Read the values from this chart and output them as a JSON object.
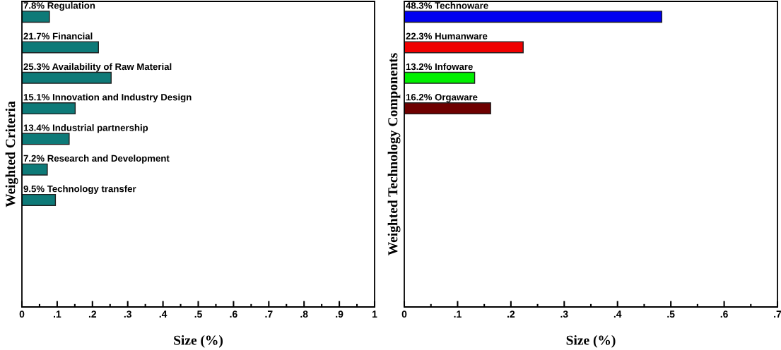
{
  "chart_data": [
    {
      "type": "bar",
      "orientation": "horizontal",
      "ylabel": "Weighted Criteria",
      "xlabel": "Size (%)",
      "categories": [
        "7.8% Regulation",
        "21.7% Financial",
        "25.3% Availability of Raw Material",
        "15.1% Innovation and Industry Design",
        "13.4% Industrial partnership",
        "7.2% Research and Development",
        "9.5% Technology transfer",
        null,
        null,
        null
      ],
      "values": [
        0.078,
        0.217,
        0.253,
        0.151,
        0.134,
        0.072,
        0.095,
        null,
        null,
        null
      ],
      "colors": [
        "#0e7a78",
        "#0e7a78",
        "#0e7a78",
        "#0e7a78",
        "#0e7a78",
        "#0e7a78",
        "#0e7a78",
        "#0e7a78",
        "#0e7a78",
        "#0e7a78"
      ],
      "xlim": [
        0,
        1
      ],
      "xticks": [
        0,
        {
          "value": 0.1,
          "label": ".1"
        },
        {
          "value": 0.2,
          "label": ".2"
        },
        {
          "value": 0.3,
          "label": ".3"
        },
        {
          "value": 0.4,
          "label": ".4"
        },
        {
          "value": 0.5,
          "label": ".5"
        },
        {
          "value": 0.6,
          "label": ".6"
        },
        {
          "value": 0.7,
          "label": ".7"
        },
        {
          "value": 0.8,
          "label": ".8"
        },
        {
          "value": 0.9,
          "label": ".9"
        },
        1
      ],
      "tick_labels": "x",
      "grid": false,
      "legend": false
    },
    {
      "type": "bar",
      "orientation": "horizontal",
      "ylabel": "Weighted Technology Components",
      "xlabel": "Size (%)",
      "categories": [
        "48.3% Technoware",
        "22.3% Humanware",
        "13.2% Infoware",
        "16.2% Orgaware",
        null,
        null,
        null,
        null,
        null,
        null
      ],
      "values": [
        0.483,
        0.223,
        0.132,
        0.162,
        null,
        null,
        null,
        null,
        null,
        null
      ],
      "colors": [
        "#0000f0",
        "#f00000",
        "#00f000",
        "#6e0000",
        "#000000",
        "#000000",
        "#000000",
        "#000000",
        "#000000",
        "#000000"
      ],
      "xlim": [
        0,
        0.7
      ],
      "xticks": [
        0,
        {
          "value": 0.1,
          "label": ".1"
        },
        {
          "value": 0.2,
          "label": ".2"
        },
        {
          "value": 0.3,
          "label": ".3"
        },
        {
          "value": 0.4,
          "label": ".4"
        },
        {
          "value": 0.5,
          "label": ".5"
        },
        {
          "value": 0.6,
          "label": ".6"
        },
        {
          "value": 0.7,
          "label": ".7"
        }
      ],
      "tick_labels": "x",
      "grid": false,
      "legend": false
    }
  ]
}
